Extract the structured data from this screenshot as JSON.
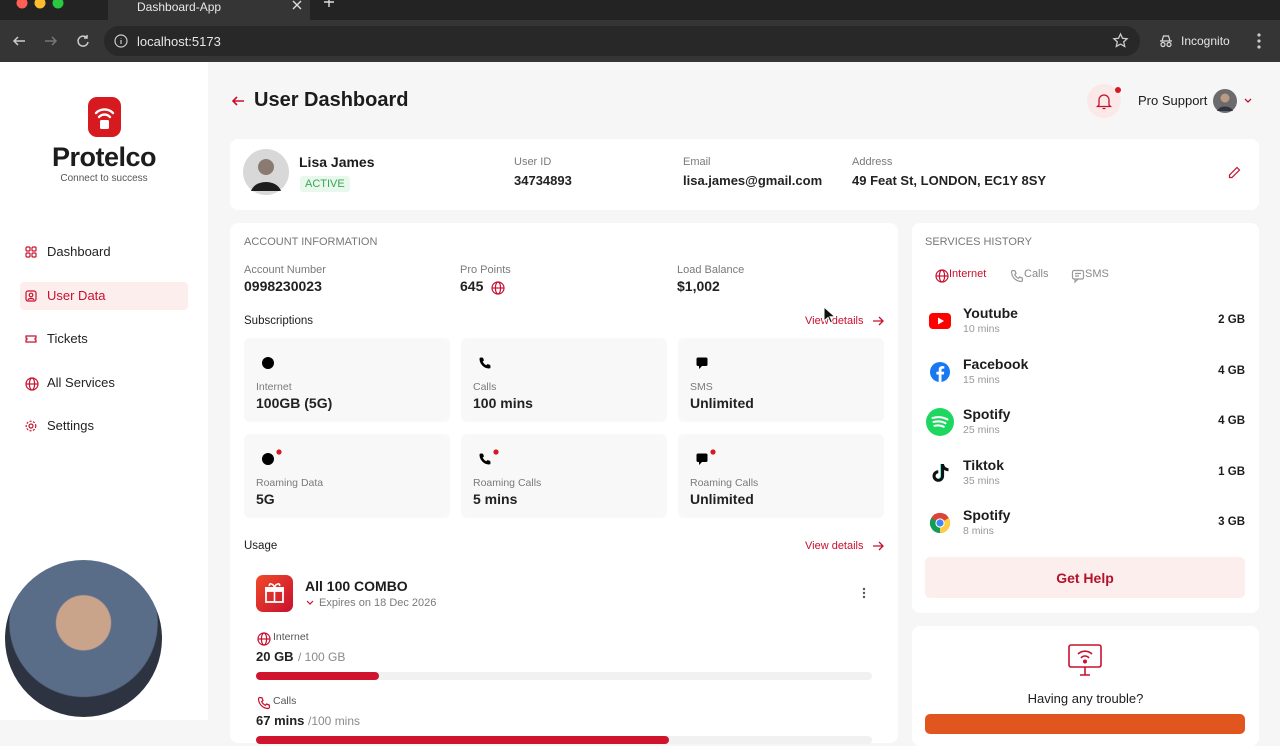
{
  "browser": {
    "tab_title": "Dashboard-App",
    "url": "localhost:5173",
    "profile": "Incognito"
  },
  "sidebar": {
    "brand": "Protelco",
    "tagline": "Connect to success",
    "nav": [
      {
        "label": "Dashboard",
        "active": false
      },
      {
        "label": "User Data",
        "active": true
      },
      {
        "label": "Tickets",
        "active": false
      },
      {
        "label": "All Services",
        "active": false
      },
      {
        "label": "Settings",
        "active": false
      }
    ]
  },
  "header": {
    "title": "User Dashboard",
    "user": "Pro Support"
  },
  "profile": {
    "name": "Lisa James",
    "status": "ACTIVE",
    "fields": [
      {
        "label": "User ID",
        "value": "34734893"
      },
      {
        "label": "Email",
        "value": "lisa.james@gmail.com"
      },
      {
        "label": "Address",
        "value": "49 Feat St, LONDON, EC1Y 8SY"
      }
    ]
  },
  "account": {
    "heading": "ACCOUNT INFORMATION",
    "stats": [
      {
        "label": "Account Number",
        "value": "0998230023"
      },
      {
        "label": "Pro Points",
        "value": "645"
      },
      {
        "label": "Load Balance",
        "value": "$1,002"
      }
    ]
  },
  "subscriptions": {
    "title": "Subscriptions",
    "link": "View details",
    "items": [
      {
        "label": "Internet",
        "value": "100GB (5G)",
        "roaming": false
      },
      {
        "label": "Calls",
        "value": "100 mins",
        "roaming": false
      },
      {
        "label": "SMS",
        "value": "Unlimited",
        "roaming": false
      },
      {
        "label": "Roaming Data",
        "value": "5G",
        "roaming": true
      },
      {
        "label": "Roaming Calls",
        "value": "5 mins",
        "roaming": true
      },
      {
        "label": "Roaming Calls",
        "value": "Unlimited",
        "roaming": true
      }
    ]
  },
  "usage": {
    "title": "Usage",
    "link": "View details",
    "plan": "All 100 COMBO",
    "expiry": "Expires on 18 Dec 2026",
    "meters": [
      {
        "label": "Internet",
        "used": "20 GB",
        "total": "/ 100 GB",
        "used_value": 20,
        "total_value": 100
      },
      {
        "label": "Calls",
        "used": "67 mins",
        "total": "/100 mins",
        "used_value": 67,
        "total_value": 100
      }
    ]
  },
  "services": {
    "heading": "SERVICES HISTORY",
    "tabs": [
      "Internet",
      "Calls",
      "SMS"
    ],
    "items": [
      {
        "name": "Youtube",
        "duration": "10 mins",
        "usage": "2 GB"
      },
      {
        "name": "Facebook",
        "duration": "15 mins",
        "usage": "4 GB"
      },
      {
        "name": "Spotify",
        "duration": "25 mins",
        "usage": "4 GB"
      },
      {
        "name": "Tiktok",
        "duration": "35 mins",
        "usage": "1 GB"
      },
      {
        "name": "Spotify",
        "duration": "8 mins",
        "usage": "3 GB"
      }
    ],
    "button": "Get Help"
  },
  "support": {
    "text": "Having any trouble?"
  }
}
